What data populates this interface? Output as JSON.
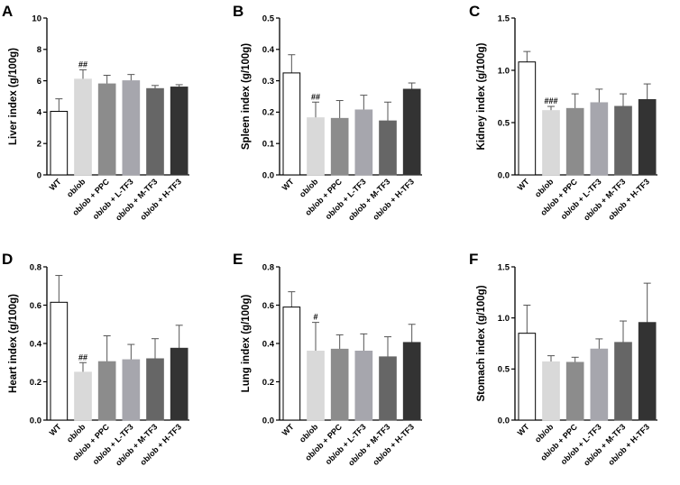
{
  "chart_data": [
    {
      "type": "bar",
      "panel": "A",
      "ylabel": "Liver index (g/100g)",
      "ylim": [
        0,
        10
      ],
      "yticks": [
        0,
        2,
        4,
        6,
        8,
        10
      ],
      "ytick_labels": [
        "0",
        "2",
        "4",
        "6",
        "8",
        "10"
      ],
      "categories": [
        "WT",
        "ob/ob",
        "ob/ob + PPC",
        "ob/ob + L-TF3",
        "ob/ob + M-TF3",
        "ob/ob + H-TF3"
      ],
      "values": [
        4.05,
        6.1,
        5.8,
        6.0,
        5.5,
        5.6
      ],
      "errors": [
        0.8,
        0.6,
        0.55,
        0.4,
        0.2,
        0.15
      ],
      "annotations": [
        null,
        "##",
        null,
        null,
        null,
        null
      ]
    },
    {
      "type": "bar",
      "panel": "B",
      "ylabel": "Spleen index (g/100g)",
      "ylim": [
        0,
        0.5
      ],
      "yticks": [
        0,
        0.1,
        0.2,
        0.3,
        0.4,
        0.5
      ],
      "ytick_labels": [
        "0.0",
        "0.1",
        "0.2",
        "0.3",
        "0.4",
        "0.5"
      ],
      "categories": [
        "WT",
        "ob/ob",
        "ob/ob + PPC",
        "ob/ob + L-TF3",
        "ob/ob + M-TF3",
        "ob/ob + H-TF3"
      ],
      "values": [
        0.325,
        0.182,
        0.18,
        0.207,
        0.172,
        0.273
      ],
      "errors": [
        0.058,
        0.05,
        0.057,
        0.047,
        0.06,
        0.02
      ],
      "annotations": [
        null,
        "##",
        null,
        null,
        null,
        null
      ]
    },
    {
      "type": "bar",
      "panel": "C",
      "ylabel": "Kidney index (g/100g)",
      "ylim": [
        0,
        1.5
      ],
      "yticks": [
        0,
        0.5,
        1.0,
        1.5
      ],
      "ytick_labels": [
        "0.0",
        "0.5",
        "1.0",
        "1.5"
      ],
      "categories": [
        "WT",
        "ob/ob",
        "ob/ob + PPC",
        "ob/ob + L-TF3",
        "ob/ob + M-TF3",
        "ob/ob + H-TF3"
      ],
      "values": [
        1.08,
        0.615,
        0.635,
        0.69,
        0.655,
        0.72
      ],
      "errors": [
        0.1,
        0.04,
        0.14,
        0.13,
        0.12,
        0.15
      ],
      "annotations": [
        null,
        "###",
        null,
        null,
        null,
        null
      ]
    },
    {
      "type": "bar",
      "panel": "D",
      "ylabel": "Heart index (g/100g)",
      "ylim": [
        0,
        0.8
      ],
      "yticks": [
        0,
        0.2,
        0.4,
        0.6,
        0.8
      ],
      "ytick_labels": [
        "0.0",
        "0.2",
        "0.4",
        "0.6",
        "0.8"
      ],
      "categories": [
        "WT",
        "ob/ob",
        "ob/ob + PPC",
        "ob/ob + L-TF3",
        "ob/ob + M-TF3",
        "ob/ob + H-TF3"
      ],
      "values": [
        0.615,
        0.25,
        0.305,
        0.315,
        0.32,
        0.375
      ],
      "errors": [
        0.14,
        0.05,
        0.135,
        0.08,
        0.105,
        0.12
      ],
      "annotations": [
        null,
        "##",
        null,
        null,
        null,
        null
      ]
    },
    {
      "type": "bar",
      "panel": "E",
      "ylabel": "Lung index (g/100g)",
      "ylim": [
        0,
        0.8
      ],
      "yticks": [
        0,
        0.2,
        0.4,
        0.6,
        0.8
      ],
      "ytick_labels": [
        "0.0",
        "0.2",
        "0.4",
        "0.6",
        "0.8"
      ],
      "categories": [
        "WT",
        "ob/ob",
        "ob/ob + PPC",
        "ob/ob + L-TF3",
        "ob/ob + M-TF3",
        "ob/ob + H-TF3"
      ],
      "values": [
        0.59,
        0.36,
        0.37,
        0.36,
        0.33,
        0.405
      ],
      "errors": [
        0.08,
        0.15,
        0.075,
        0.09,
        0.105,
        0.095
      ],
      "annotations": [
        null,
        "#",
        null,
        null,
        null,
        null
      ]
    },
    {
      "type": "bar",
      "panel": "F",
      "ylabel": "Stomach index (g/100g)",
      "ylim": [
        0,
        1.5
      ],
      "yticks": [
        0,
        0.5,
        1.0,
        1.5
      ],
      "ytick_labels": [
        "0.0",
        "0.5",
        "1.0",
        "1.5"
      ],
      "categories": [
        "WT",
        "ob/ob",
        "ob/ob + PPC",
        "ob/ob + L-TF3",
        "ob/ob + M-TF3",
        "ob/ob + H-TF3"
      ],
      "values": [
        0.85,
        0.57,
        0.565,
        0.695,
        0.76,
        0.955
      ],
      "errors": [
        0.275,
        0.06,
        0.05,
        0.1,
        0.21,
        0.385
      ],
      "annotations": [
        null,
        null,
        null,
        null,
        null,
        null
      ]
    }
  ],
  "bar_colors": [
    "#ffffff",
    "#d9d9d9",
    "#8c8c8c",
    "#a6a6ad",
    "#666666",
    "#333333"
  ],
  "axis_color": "#000000"
}
